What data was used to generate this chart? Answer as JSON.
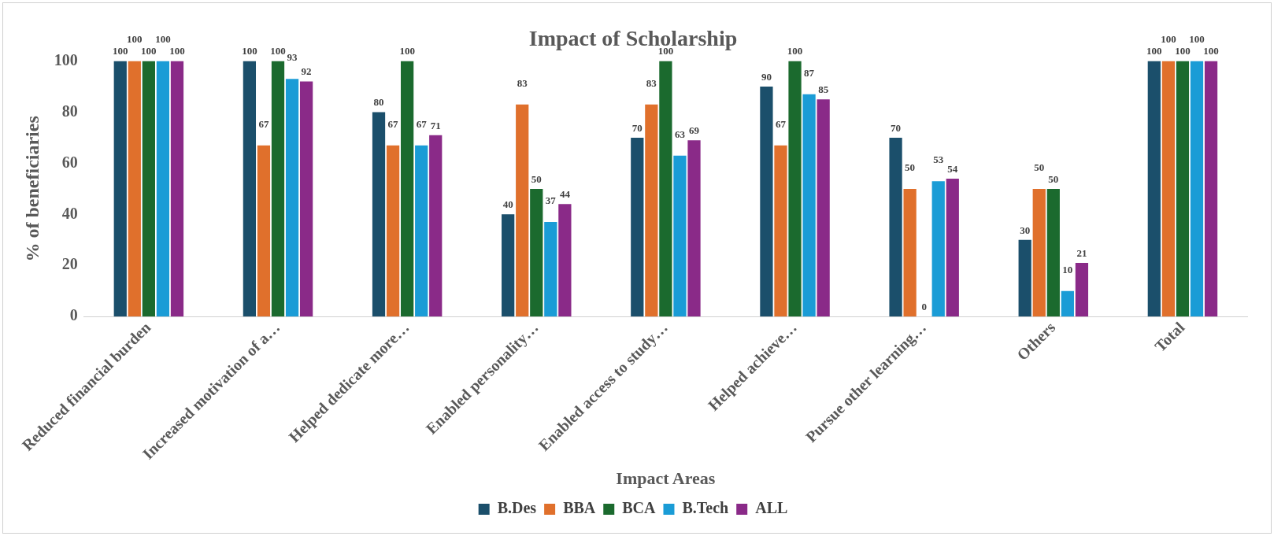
{
  "chart_data": {
    "type": "bar",
    "title": "Impact of Scholarship",
    "xlabel": "Impact Areas",
    "ylabel": "% of beneficiaries",
    "categories": [
      "Reduced financial burden",
      "Increased motivation of a…",
      "Helped dedicate more…",
      "Enabled personality…",
      "Enabled access to study…",
      "Helped achieve…",
      "Pursue other learning…",
      "Others",
      "Total"
    ],
    "series": [
      {
        "name": "B.Des",
        "color": "#1b4f6b",
        "values": [
          100,
          100,
          80,
          40,
          70,
          90,
          70,
          30,
          100
        ]
      },
      {
        "name": "BBA",
        "color": "#e0702c",
        "values": [
          100,
          67,
          67,
          83,
          83,
          67,
          50,
          50,
          100
        ]
      },
      {
        "name": "BCA",
        "color": "#1b6a2e",
        "values": [
          100,
          100,
          100,
          50,
          100,
          100,
          0,
          50,
          100
        ]
      },
      {
        "name": "B.Tech",
        "color": "#1a9cd6",
        "values": [
          100,
          93,
          67,
          37,
          63,
          87,
          53,
          10,
          100
        ]
      },
      {
        "name": "ALL",
        "color": "#8a2a88",
        "values": [
          100,
          92,
          71,
          44,
          69,
          85,
          54,
          21,
          100
        ]
      }
    ],
    "ylim": [
      0,
      100
    ],
    "yticks": [
      0,
      20,
      40,
      60,
      80,
      100
    ],
    "grid": false,
    "legend": "bottom",
    "data_labels": true
  }
}
